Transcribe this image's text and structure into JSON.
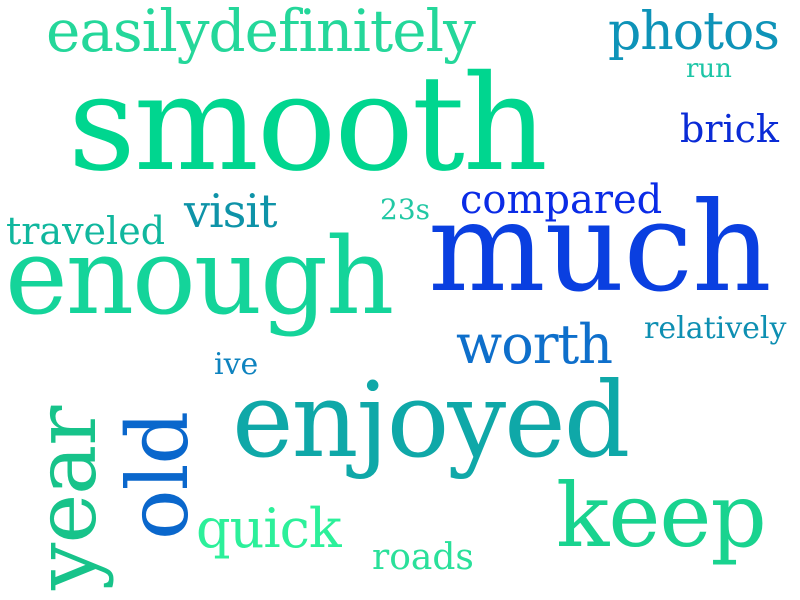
{
  "words": [
    {
      "text": "smooth",
      "color": "#00D68F"
    },
    {
      "text": "much",
      "color": "#0A3FE0"
    },
    {
      "text": "enough",
      "color": "#14D49A"
    },
    {
      "text": "enjoyed",
      "color": "#0FA8A8"
    },
    {
      "text": "keep",
      "color": "#19D38F"
    },
    {
      "text": "year",
      "color": "#17C38A"
    },
    {
      "text": "old",
      "color": "#0A67CC"
    },
    {
      "text": "easilydefinitely",
      "color": "#24D79A"
    },
    {
      "text": "photos",
      "color": "#0E93B8"
    },
    {
      "text": "worth",
      "color": "#0E6FCB"
    },
    {
      "text": "quick",
      "color": "#2CF09A"
    },
    {
      "text": "visit",
      "color": "#0E93A8"
    },
    {
      "text": "traveled",
      "color": "#10B79E"
    },
    {
      "text": "compared",
      "color": "#0A2BE6"
    },
    {
      "text": "brick",
      "color": "#0A2BD6"
    },
    {
      "text": "relatively",
      "color": "#0E8FB2"
    },
    {
      "text": "roads",
      "color": "#2AE09A"
    },
    {
      "text": "run",
      "color": "#1CC5A6"
    },
    {
      "text": "23s",
      "color": "#22C8A4"
    },
    {
      "text": "ive",
      "color": "#0E83BF"
    }
  ]
}
